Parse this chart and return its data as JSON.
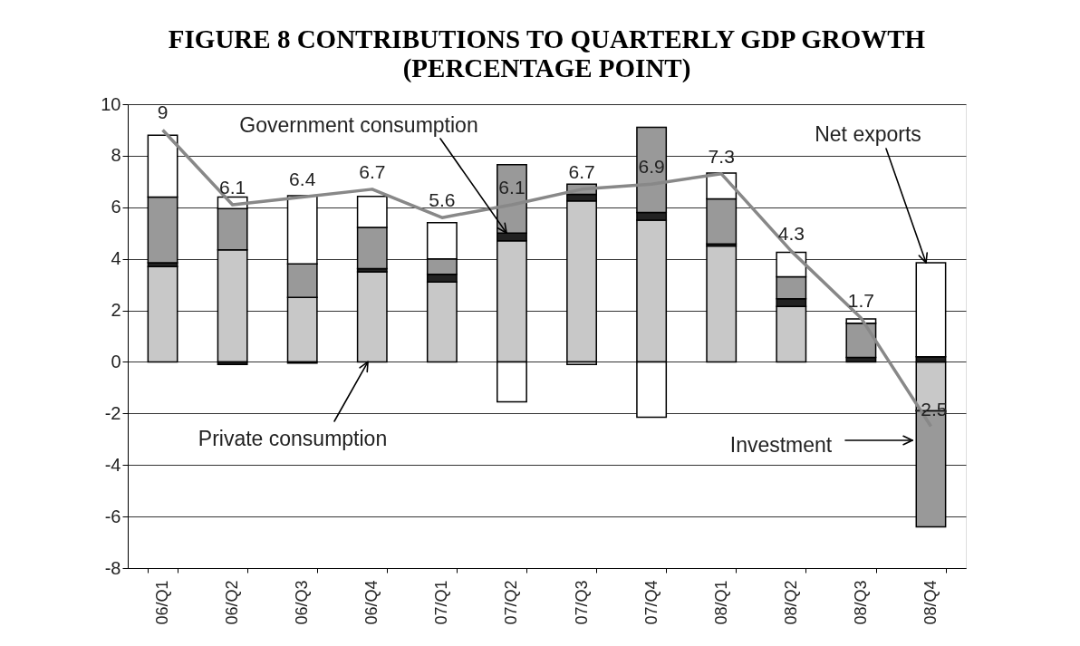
{
  "chart_data": {
    "type": "bar",
    "title": "FIGURE 8      CONTRIBUTIONS TO QUARTERLY GDP GROWTH",
    "subtitle": "(PERCENTAGE POINT)",
    "categories": [
      "06/Q1",
      "06/Q2",
      "06/Q3",
      "06/Q4",
      "07/Q1",
      "07/Q2",
      "07/Q3",
      "07/Q4",
      "08/Q1",
      "08/Q2",
      "08/Q3",
      "08/Q4"
    ],
    "stacked": true,
    "series": [
      {
        "color": "#c8c8c8",
        "values": [
          3.7,
          4.35,
          2.5,
          3.5,
          3.1,
          4.7,
          6.25,
          5.5,
          4.5,
          2.15,
          null,
          -1.9
        ]
      },
      {
        "color": "#222222",
        "values": [
          0.15,
          -0.1,
          -0.05,
          0.12,
          0.3,
          0.3,
          0.25,
          0.3,
          0.08,
          0.3,
          0.17,
          0.2
        ]
      },
      {
        "color": "#999999",
        "values": [
          2.55,
          1.6,
          1.3,
          1.6,
          0.6,
          2.65,
          0.4,
          3.3,
          1.75,
          0.85,
          1.33,
          -4.5
        ]
      },
      {
        "color": "#ffffff",
        "values": [
          2.4,
          0.45,
          2.65,
          1.2,
          1.4,
          -1.55,
          -0.1,
          -2.15,
          1.0,
          0.95,
          0.17,
          3.65
        ]
      },
      {
        "type": "line",
        "color": "#888888",
        "values": [
          9,
          6.1,
          6.4,
          6.7,
          5.6,
          6.1,
          6.7,
          6.9,
          7.3,
          4.3,
          1.7,
          -2.5
        ],
        "data_labels": true
      }
    ],
    "ylim": [
      -8,
      10
    ],
    "yticks": [
      -8,
      -6,
      -4,
      -2,
      0,
      2,
      4,
      6,
      8,
      10
    ],
    "grid": "y",
    "legend": false,
    "annotations": [
      {
        "text": "Government consumption",
        "x": "07/Q2",
        "y": 5.0
      },
      {
        "text": "Private consumption",
        "x": "06/Q4",
        "y": 0
      },
      {
        "text": "Net exports",
        "x": "08/Q4",
        "y": 3.85
      },
      "Investment"
    ]
  }
}
